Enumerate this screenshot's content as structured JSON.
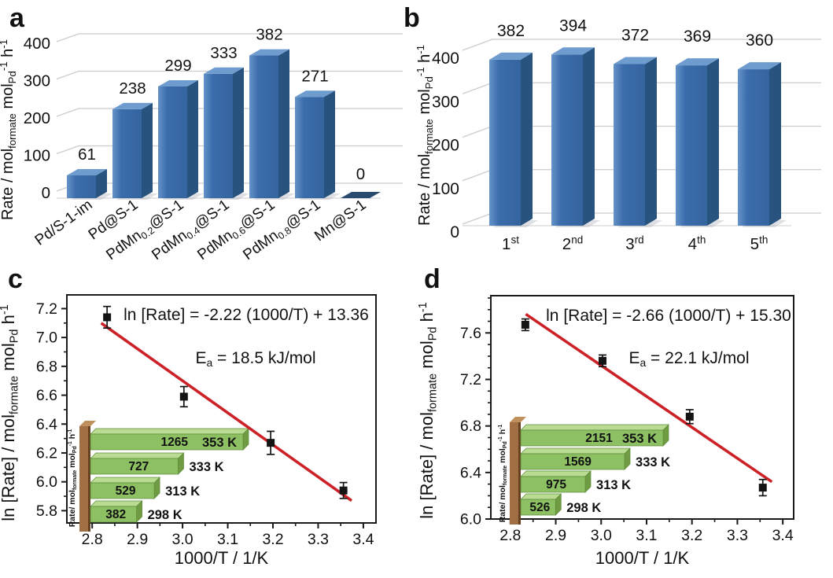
{
  "panels": {
    "a": {
      "label": "a"
    },
    "b": {
      "label": "b"
    },
    "c": {
      "label": "c"
    },
    "d": {
      "label": "d"
    }
  },
  "colors": {
    "bar_blue_light": "#6593c8",
    "bar_blue": "#3b6dac",
    "bar_blue_deep": "#35659f",
    "bar_blue_side": "#28537f",
    "bar_blue_top": "#6f9ccf",
    "bar_zero_tile": "#2b4a70",
    "grid_gray": "#cccccc",
    "floor_gray": "#d8d8d8",
    "shadow_gray": "#a8aeb5",
    "axis_black": "#1a1a1a",
    "fit_line_red": "#cc2127",
    "marker_black": "#141414",
    "inset_green": "#8cc063",
    "inset_green_top": "#b9dc92",
    "inset_green_end": "#6f9c42",
    "inset_green_outline": "#5d8a38",
    "inset_brown": "#a06f44",
    "inset_brown_side": "#66401f",
    "inset_brown_top": "#bf8f5c",
    "temp_red": "#d42322",
    "temp_orange": "#e8500f",
    "text_black": "#111111"
  },
  "chart_data": [
    {
      "id": "a",
      "type": "bar",
      "style": "3d-column",
      "ylabel_segments": [
        {
          "t": "Rate / mol"
        },
        {
          "t": "formate",
          "s": "sub"
        },
        {
          "t": " mol"
        },
        {
          "t": "Pd",
          "s": "sub"
        },
        {
          "t": "-1",
          "s": "sup"
        },
        {
          "t": " h"
        },
        {
          "t": "-1",
          "s": "sup"
        }
      ],
      "yticks": [
        0,
        100,
        200,
        300,
        400
      ],
      "categories_segments": [
        [
          {
            "t": "Pd/S-1-im"
          }
        ],
        [
          {
            "t": "Pd@S-1"
          }
        ],
        [
          {
            "t": "PdMn"
          },
          {
            "t": "0.2",
            "s": "sub"
          },
          {
            "t": "@S-1"
          }
        ],
        [
          {
            "t": "PdMn"
          },
          {
            "t": "0.4",
            "s": "sub"
          },
          {
            "t": "@S-1"
          }
        ],
        [
          {
            "t": "PdMn"
          },
          {
            "t": "0.6",
            "s": "sub"
          },
          {
            "t": "@S-1"
          }
        ],
        [
          {
            "t": "PdMn"
          },
          {
            "t": "0.8",
            "s": "sub"
          },
          {
            "t": "@S-1"
          }
        ],
        [
          {
            "t": "Mn@S-1"
          }
        ]
      ],
      "values": [
        61,
        238,
        299,
        333,
        382,
        271,
        0
      ],
      "value_labels": [
        "61",
        "238",
        "299",
        "333",
        "382",
        "271",
        "0"
      ]
    },
    {
      "id": "b",
      "type": "bar",
      "style": "3d-column",
      "ylabel_segments": [
        {
          "t": "Rate / mol"
        },
        {
          "t": "formate",
          "s": "sub"
        },
        {
          "t": " mol"
        },
        {
          "t": "Pd",
          "s": "sub"
        },
        {
          "t": "-1",
          "s": "sup"
        },
        {
          "t": " h"
        },
        {
          "t": "-1",
          "s": "sup"
        }
      ],
      "yticks": [
        0,
        100,
        200,
        300,
        400
      ],
      "categories_segments": [
        [
          {
            "t": "1"
          },
          {
            "t": "st",
            "s": "sup"
          }
        ],
        [
          {
            "t": "2"
          },
          {
            "t": "nd",
            "s": "sup"
          }
        ],
        [
          {
            "t": "3"
          },
          {
            "t": "rd",
            "s": "sup"
          }
        ],
        [
          {
            "t": "4"
          },
          {
            "t": "th",
            "s": "sup"
          }
        ],
        [
          {
            "t": "5"
          },
          {
            "t": "th",
            "s": "sup"
          }
        ]
      ],
      "values": [
        382,
        394,
        372,
        369,
        360
      ],
      "value_labels": [
        "382",
        "394",
        "372",
        "369",
        "360"
      ]
    },
    {
      "id": "c",
      "type": "scatter",
      "x": [
        2.833,
        3.003,
        3.195,
        3.356
      ],
      "y": [
        7.14,
        6.59,
        6.27,
        5.94
      ],
      "yerr": [
        0.075,
        0.07,
        0.08,
        0.055
      ],
      "fit": {
        "slope": -2.22,
        "intercept": 13.36,
        "x_start": 2.82,
        "x_end": 3.374
      },
      "equation": "ln [Rate] = -2.22 (1000/T) + 13.36",
      "ea_segments": [
        {
          "t": "E"
        },
        {
          "t": "a",
          "s": "sub"
        },
        {
          "t": " = 18.5 kJ/mol"
        }
      ],
      "xlabel": "1000/T / 1/K",
      "ylabel_segments": [
        {
          "t": "ln [Rate] / mol"
        },
        {
          "t": "formate",
          "s": "sub"
        },
        {
          "t": " mol"
        },
        {
          "t": "Pd",
          "s": "sub"
        },
        {
          "t": " h"
        },
        {
          "t": "-1",
          "s": "sup"
        }
      ],
      "xticks": [
        "2.8",
        "2.9",
        "3.0",
        "3.1",
        "3.2",
        "3.3",
        "3.4"
      ],
      "yticks": [
        "5.8",
        "6.0",
        "6.2",
        "6.4",
        "6.6",
        "6.8",
        "7.0",
        "7.2"
      ],
      "x_minor": [
        2.85,
        2.95,
        3.05,
        3.15,
        3.25,
        3.35
      ],
      "y_minor": [
        5.9,
        6.1,
        6.3,
        6.5,
        6.7,
        6.9,
        7.1
      ],
      "xlim": [
        2.744,
        3.428
      ],
      "ylim": [
        5.715,
        7.295
      ],
      "inset": {
        "ylabel_segments": [
          {
            "t": "Rate/ mol"
          },
          {
            "t": "formate",
            "s": "sub"
          },
          {
            "t": " mol"
          },
          {
            "t": "Pd",
            "s": "sub"
          },
          {
            "t": "-1",
            "s": "sup"
          },
          {
            "t": " h"
          },
          {
            "t": "-1",
            "s": "sup"
          }
        ],
        "bars": [
          {
            "value": 1265,
            "label": "1265",
            "temp": "353 K",
            "temp_inside": true
          },
          {
            "value": 727,
            "label": "727",
            "temp": "333 K",
            "temp_inside": false
          },
          {
            "value": 529,
            "label": "529",
            "temp": "313 K",
            "temp_inside": false
          },
          {
            "value": 382,
            "label": "382",
            "temp": "298 K",
            "temp_inside": false
          }
        ]
      }
    },
    {
      "id": "d",
      "type": "scatter",
      "x": [
        2.833,
        3.003,
        3.195,
        3.356
      ],
      "y": [
        7.67,
        7.36,
        6.88,
        6.27
      ],
      "yerr": [
        0.05,
        0.05,
        0.06,
        0.07
      ],
      "fit": {
        "slope": -2.66,
        "intercept": 15.3,
        "x_start": 2.834,
        "x_end": 3.376
      },
      "equation": "ln [Rate] = -2.66 (1000/T) + 15.30",
      "ea_segments": [
        {
          "t": "E"
        },
        {
          "t": "a",
          "s": "sub"
        },
        {
          "t": " = 22.1 kJ/mol"
        }
      ],
      "xlabel": "1000/T / 1/K",
      "ylabel_segments": [
        {
          "t": "ln [Rate] / mol"
        },
        {
          "t": "formate",
          "s": "sub"
        },
        {
          "t": " mol"
        },
        {
          "t": "Pd",
          "s": "sub"
        },
        {
          "t": " h"
        },
        {
          "t": "-1",
          "s": "sup"
        }
      ],
      "xticks": [
        "2.8",
        "2.9",
        "3.0",
        "3.1",
        "3.2",
        "3.3",
        "3.4"
      ],
      "yticks": [
        "6.0",
        "6.4",
        "6.8",
        "7.2",
        "7.6"
      ],
      "x_minor": [
        2.85,
        2.95,
        3.05,
        3.15,
        3.25,
        3.35
      ],
      "y_minor": [
        6.1,
        6.2,
        6.3,
        6.5,
        6.6,
        6.7,
        6.9,
        7.0,
        7.1,
        7.3,
        7.4,
        7.5,
        7.7,
        7.8,
        7.9
      ],
      "xlim": [
        2.757,
        3.424
      ],
      "ylim": [
        6.0,
        7.92
      ],
      "inset": {
        "ylabel_segments": [
          {
            "t": "Rate/ mol"
          },
          {
            "t": "formate",
            "s": "sub"
          },
          {
            "t": " mol"
          },
          {
            "t": "Pd",
            "s": "sub"
          },
          {
            "t": "-1",
            "s": "sup"
          },
          {
            "t": " h"
          },
          {
            "t": "-1",
            "s": "sup"
          }
        ],
        "bars": [
          {
            "value": 2151,
            "label": "2151",
            "temp": "353 K",
            "temp_inside": true
          },
          {
            "value": 1569,
            "label": "1569",
            "temp": "333 K",
            "temp_inside": false
          },
          {
            "value": 975,
            "label": "975",
            "temp": "313 K",
            "temp_inside": false
          },
          {
            "value": 526,
            "label": "526",
            "temp": "298 K",
            "temp_inside": false
          }
        ]
      }
    }
  ]
}
